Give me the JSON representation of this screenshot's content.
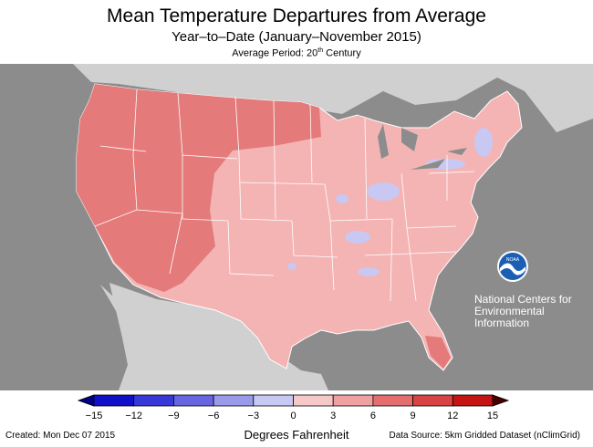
{
  "title": "Mean Temperature Departures from Average",
  "subtitle": "Year–to–Date (January–November 2015)",
  "average_period": {
    "prefix": "Average Period: 20",
    "sup": "th",
    "suffix": " Century"
  },
  "logo": {
    "text": "NOAA",
    "icon": "noaa-logo-icon"
  },
  "org_text": [
    "National Centers for",
    "Environmental",
    "Information"
  ],
  "legend": {
    "units": "Degrees Fahrenheit",
    "ticks": [
      "−15",
      "−12",
      "−9",
      "−6",
      "−3",
      "0",
      "3",
      "6",
      "9",
      "12",
      "15"
    ],
    "colors": [
      "#1010c8",
      "#3838d8",
      "#6666e0",
      "#9a9aea",
      "#c8c8f4",
      "#f6c8c8",
      "#f0a0a0",
      "#e46e6e",
      "#d84444",
      "#c41414"
    ]
  },
  "footer": {
    "created": "Created: Mon Dec 07 2015",
    "source": "Data Source: 5km Gridded Dataset (nClimGrid)"
  },
  "colors": {
    "ocean": "#8c8c8c",
    "land_other": "#d0d0d0",
    "lakes": "#8c8c8c",
    "state_lines": "#ffffff",
    "warm_high": "#e47a7a",
    "warm_low": "#f4b4b4",
    "cool": "#c8c8f2"
  }
}
